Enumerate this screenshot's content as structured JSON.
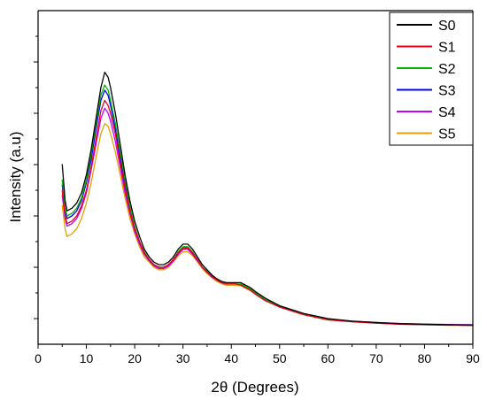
{
  "chart_data": {
    "type": "line",
    "title": "",
    "xlabel": "2θ (Degrees)",
    "ylabel": "Intensity (a.u)",
    "xlim": [
      0,
      90
    ],
    "ylim": [
      0,
      1.3
    ],
    "x_ticks": [
      "0",
      "10",
      "20",
      "30",
      "40",
      "50",
      "60",
      "70",
      "80",
      "90"
    ],
    "y_tick_labels_shown": false,
    "grid": false,
    "legend_position": "top-right",
    "series": [
      {
        "name": "S0",
        "color": "#000000",
        "x": [
          5,
          5.6,
          6,
          7,
          8,
          9,
          10,
          11,
          12,
          13,
          13.8,
          14.5,
          15,
          16,
          17,
          18,
          19,
          20,
          21,
          22,
          23,
          24,
          25,
          26,
          27,
          28,
          29,
          30,
          31,
          32,
          33,
          34,
          35,
          36,
          37,
          38,
          39,
          40,
          41,
          42,
          43,
          44,
          45,
          47,
          50,
          55,
          60,
          65,
          70,
          75,
          80,
          85,
          90
        ],
        "y": [
          0.7,
          0.56,
          0.52,
          0.53,
          0.55,
          0.59,
          0.66,
          0.76,
          0.88,
          1.0,
          1.06,
          1.04,
          1.0,
          0.9,
          0.78,
          0.66,
          0.56,
          0.48,
          0.42,
          0.37,
          0.34,
          0.32,
          0.31,
          0.31,
          0.32,
          0.34,
          0.37,
          0.39,
          0.39,
          0.37,
          0.34,
          0.31,
          0.29,
          0.27,
          0.255,
          0.245,
          0.24,
          0.24,
          0.24,
          0.24,
          0.23,
          0.22,
          0.205,
          0.18,
          0.15,
          0.12,
          0.1,
          0.09,
          0.085,
          0.08,
          0.078,
          0.076,
          0.075
        ]
      },
      {
        "name": "S1",
        "color": "#e8001c",
        "x": [
          5,
          5.6,
          6,
          7,
          8,
          9,
          10,
          11,
          12,
          13,
          13.8,
          14.5,
          15,
          16,
          17,
          18,
          19,
          20,
          21,
          22,
          23,
          24,
          25,
          26,
          27,
          28,
          29,
          30,
          31,
          32,
          33,
          34,
          35,
          36,
          37,
          38,
          39,
          40,
          41,
          42,
          43,
          44,
          45,
          47,
          50,
          55,
          60,
          65,
          70,
          75,
          80,
          85,
          90
        ],
        "y": [
          0.6,
          0.5,
          0.47,
          0.48,
          0.5,
          0.54,
          0.6,
          0.69,
          0.8,
          0.91,
          0.95,
          0.93,
          0.9,
          0.82,
          0.71,
          0.61,
          0.52,
          0.45,
          0.4,
          0.355,
          0.33,
          0.31,
          0.3,
          0.3,
          0.31,
          0.33,
          0.355,
          0.375,
          0.375,
          0.355,
          0.33,
          0.3,
          0.28,
          0.265,
          0.25,
          0.24,
          0.235,
          0.235,
          0.235,
          0.23,
          0.22,
          0.21,
          0.195,
          0.17,
          0.145,
          0.115,
          0.095,
          0.088,
          0.082,
          0.078,
          0.076,
          0.075,
          0.074
        ]
      },
      {
        "name": "S2",
        "color": "#00b400",
        "x": [
          5,
          5.6,
          6,
          7,
          8,
          9,
          10,
          11,
          12,
          13,
          13.8,
          14.5,
          15,
          16,
          17,
          18,
          19,
          20,
          21,
          22,
          23,
          24,
          25,
          26,
          27,
          28,
          29,
          30,
          31,
          32,
          33,
          34,
          35,
          36,
          37,
          38,
          39,
          40,
          41,
          42,
          43,
          44,
          45,
          47,
          50,
          55,
          60,
          65,
          70,
          75,
          80,
          85,
          90
        ],
        "y": [
          0.64,
          0.53,
          0.5,
          0.51,
          0.53,
          0.57,
          0.64,
          0.74,
          0.86,
          0.97,
          1.01,
          0.99,
          0.95,
          0.86,
          0.75,
          0.64,
          0.54,
          0.46,
          0.4,
          0.36,
          0.33,
          0.31,
          0.3,
          0.3,
          0.31,
          0.33,
          0.36,
          0.38,
          0.38,
          0.36,
          0.33,
          0.3,
          0.285,
          0.265,
          0.25,
          0.24,
          0.235,
          0.235,
          0.235,
          0.235,
          0.225,
          0.215,
          0.2,
          0.175,
          0.148,
          0.118,
          0.098,
          0.089,
          0.083,
          0.079,
          0.077,
          0.075,
          0.074
        ]
      },
      {
        "name": "S3",
        "color": "#0000ff",
        "x": [
          5,
          5.6,
          6,
          7,
          8,
          9,
          10,
          11,
          12,
          13,
          13.8,
          14.5,
          15,
          16,
          17,
          18,
          19,
          20,
          21,
          22,
          23,
          24,
          25,
          26,
          27,
          28,
          29,
          30,
          31,
          32,
          33,
          34,
          35,
          36,
          37,
          38,
          39,
          40,
          41,
          42,
          43,
          44,
          45,
          47,
          50,
          55,
          60,
          65,
          70,
          75,
          80,
          85,
          90
        ],
        "y": [
          0.62,
          0.52,
          0.49,
          0.5,
          0.52,
          0.56,
          0.63,
          0.72,
          0.84,
          0.95,
          0.99,
          0.97,
          0.93,
          0.84,
          0.73,
          0.62,
          0.53,
          0.455,
          0.4,
          0.355,
          0.33,
          0.31,
          0.3,
          0.3,
          0.31,
          0.33,
          0.355,
          0.375,
          0.375,
          0.355,
          0.33,
          0.3,
          0.28,
          0.265,
          0.25,
          0.24,
          0.235,
          0.235,
          0.235,
          0.232,
          0.222,
          0.212,
          0.198,
          0.172,
          0.146,
          0.117,
          0.097,
          0.088,
          0.083,
          0.079,
          0.077,
          0.075,
          0.074
        ]
      },
      {
        "name": "S4",
        "color": "#c000ff",
        "x": [
          5,
          5.6,
          6,
          7,
          8,
          9,
          10,
          11,
          12,
          13,
          13.8,
          14.5,
          15,
          16,
          17,
          18,
          19,
          20,
          21,
          22,
          23,
          24,
          25,
          26,
          27,
          28,
          29,
          30,
          31,
          32,
          33,
          34,
          35,
          36,
          37,
          38,
          39,
          40,
          41,
          42,
          43,
          44,
          45,
          47,
          50,
          55,
          60,
          65,
          70,
          75,
          80,
          85,
          90
        ],
        "y": [
          0.58,
          0.49,
          0.46,
          0.47,
          0.49,
          0.53,
          0.59,
          0.68,
          0.78,
          0.88,
          0.92,
          0.9,
          0.87,
          0.79,
          0.69,
          0.59,
          0.51,
          0.44,
          0.39,
          0.35,
          0.325,
          0.305,
          0.295,
          0.295,
          0.305,
          0.325,
          0.35,
          0.37,
          0.37,
          0.35,
          0.325,
          0.3,
          0.28,
          0.262,
          0.25,
          0.24,
          0.235,
          0.235,
          0.235,
          0.232,
          0.222,
          0.212,
          0.198,
          0.173,
          0.147,
          0.118,
          0.098,
          0.09,
          0.085,
          0.081,
          0.079,
          0.077,
          0.076
        ]
      },
      {
        "name": "S5",
        "color": "#e6a000",
        "x": [
          5,
          5.6,
          6,
          7,
          8,
          9,
          10,
          11,
          12,
          13,
          13.8,
          14.5,
          15,
          16,
          17,
          18,
          19,
          20,
          21,
          22,
          23,
          24,
          25,
          26,
          27,
          28,
          29,
          30,
          31,
          32,
          33,
          34,
          35,
          36,
          37,
          38,
          39,
          40,
          41,
          42,
          43,
          44,
          45,
          47,
          50,
          55,
          60,
          65,
          70,
          75,
          80,
          85,
          90
        ],
        "y": [
          0.54,
          0.45,
          0.42,
          0.43,
          0.45,
          0.49,
          0.55,
          0.63,
          0.73,
          0.82,
          0.86,
          0.85,
          0.82,
          0.75,
          0.66,
          0.57,
          0.49,
          0.43,
          0.38,
          0.34,
          0.32,
          0.3,
          0.29,
          0.29,
          0.3,
          0.32,
          0.345,
          0.36,
          0.36,
          0.345,
          0.32,
          0.295,
          0.275,
          0.258,
          0.245,
          0.235,
          0.23,
          0.23,
          0.23,
          0.228,
          0.218,
          0.208,
          0.195,
          0.17,
          0.145,
          0.115,
          0.095,
          0.087,
          0.082,
          0.078,
          0.076,
          0.074,
          0.073
        ]
      }
    ]
  }
}
